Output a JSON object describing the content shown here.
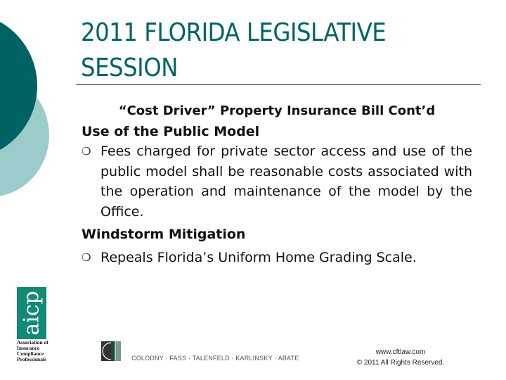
{
  "slide": {
    "title": "2011 FLORIDA LEGISLATIVE SESSION",
    "subtitle": "“Cost Driver” Property Insurance Bill Cont’d",
    "sections": [
      {
        "heading": "Use of the Public Model",
        "bullets": [
          "Fees charged for private sector access and use of the public model shall be reasonable costs associated with the operation and maintenance of the model by the Office."
        ]
      },
      {
        "heading": "Windstorm Mitigation",
        "bullets": [
          "Repeals Florida’s Uniform Home Grading Scale."
        ]
      }
    ],
    "bullet_glyph": "❍"
  },
  "logos": {
    "aicp_letters": "aicp",
    "aicp_name": "Association of Insurance Compliance Professionals",
    "firm_name": "COLODNY · FASS · TALENFELD · KARLINSKY · ABATE"
  },
  "footer": {
    "website": "www.cftlaw.com",
    "copyright": "© 2011 All Rights Reserved."
  },
  "colors": {
    "dark_teal": "#006262",
    "light_teal": "#9ccbcb",
    "title": "#006464",
    "aicp_green": "#128a75"
  }
}
